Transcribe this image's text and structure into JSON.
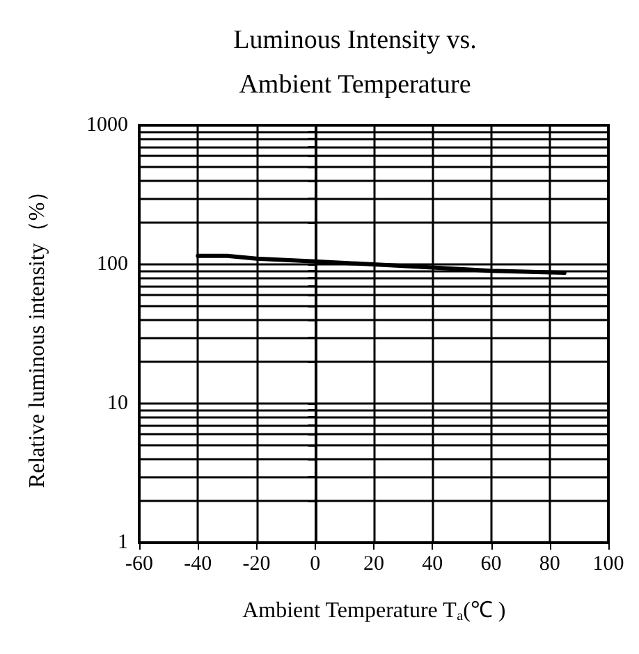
{
  "chart_data": {
    "type": "line",
    "title": "Luminous Intensity vs.\nAmbient Temperature",
    "xlabel": "Ambient Temperature T$_{a}$(℃ )",
    "ylabel": "Relative luminous intensity（%）",
    "x": [
      -40,
      -30,
      -20,
      0,
      20,
      40,
      60,
      85
    ],
    "series": [
      {
        "color": "#000000",
        "values": [
          115,
          115,
          110,
          105,
          100,
          95,
          90,
          87
        ]
      }
    ],
    "xlim": [
      -60,
      100
    ],
    "xticks": [
      -60,
      -40,
      -20,
      0,
      20,
      40,
      60,
      80,
      100
    ],
    "ylim": [
      1,
      1000
    ],
    "log": true,
    "yticks": [
      1,
      {
        "value": 2,
        "label": null
      },
      {
        "value": 3,
        "label": null
      },
      {
        "value": 4,
        "label": null
      },
      {
        "value": 5,
        "label": null
      },
      {
        "value": 6,
        "label": null
      },
      {
        "value": 7,
        "label": null
      },
      {
        "value": 8,
        "label": null
      },
      {
        "value": 9,
        "label": null
      },
      10,
      {
        "value": 20,
        "label": null
      },
      {
        "value": 30,
        "label": null
      },
      {
        "value": 40,
        "label": null
      },
      {
        "value": 50,
        "label": null
      },
      {
        "value": 60,
        "label": null
      },
      {
        "value": 70,
        "label": null
      },
      {
        "value": 80,
        "label": null
      },
      {
        "value": 90,
        "label": null
      },
      100,
      {
        "value": 200,
        "label": null
      },
      {
        "value": 300,
        "label": null
      },
      {
        "value": 400,
        "label": null
      },
      {
        "value": 500,
        "label": null
      },
      {
        "value": 600,
        "label": null
      },
      {
        "value": 700,
        "label": null
      },
      {
        "value": 800,
        "label": null
      },
      {
        "value": 900,
        "label": null
      },
      1000
    ],
    "grid": true,
    "marker": "none",
    "line_style": "solid"
  }
}
